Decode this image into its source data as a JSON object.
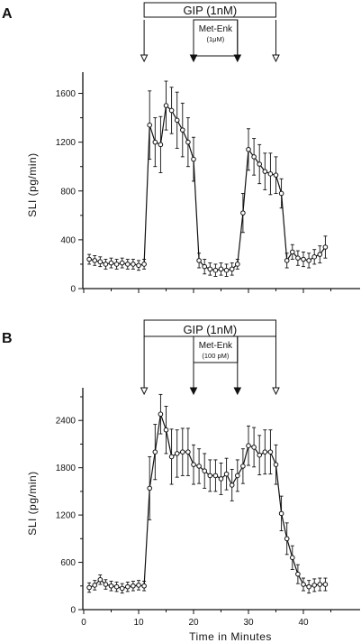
{
  "chart_data": [
    {
      "type": "line",
      "panel_label": "A",
      "xlabel": "",
      "ylabel": "SLI (pg/min)",
      "xlim": [
        0,
        45
      ],
      "ylim": [
        0,
        1700
      ],
      "yticks": [
        0,
        400,
        800,
        1200,
        1600
      ],
      "xticks": [
        0,
        10,
        20,
        30,
        40
      ],
      "xtick_labels_shown": false,
      "bars": {
        "outer_label": "GIP (1nM)",
        "outer_range": [
          11,
          35
        ],
        "inner_label": "Met-Enk",
        "inner_sublabel": "(1μM)",
        "inner_range": [
          20,
          28
        ]
      },
      "arrows": [
        {
          "x": 11,
          "style": "open"
        },
        {
          "x": 20,
          "style": "filled"
        },
        {
          "x": 28,
          "style": "filled"
        },
        {
          "x": 35,
          "style": "open"
        }
      ],
      "series": [
        {
          "x": [
            1,
            2,
            3,
            4,
            5,
            6,
            7,
            8,
            9,
            10,
            11,
            12,
            13,
            14,
            15,
            16,
            17,
            18,
            19,
            20,
            21,
            22,
            23,
            24,
            25,
            26,
            27,
            28,
            29,
            30,
            31,
            32,
            33,
            34,
            35,
            36,
            37,
            38,
            39,
            40,
            41,
            42,
            43,
            44
          ],
          "y": [
            240,
            230,
            220,
            200,
            210,
            200,
            210,
            200,
            200,
            190,
            200,
            1340,
            1200,
            1180,
            1500,
            1460,
            1380,
            1300,
            1200,
            1060,
            230,
            180,
            160,
            150,
            160,
            150,
            160,
            200,
            620,
            1140,
            1080,
            1020,
            960,
            940,
            930,
            780,
            230,
            300,
            250,
            240,
            230,
            260,
            280,
            340
          ],
          "err": [
            40,
            40,
            40,
            40,
            40,
            40,
            40,
            40,
            40,
            40,
            40,
            280,
            200,
            230,
            200,
            190,
            230,
            220,
            200,
            180,
            60,
            60,
            50,
            50,
            50,
            50,
            50,
            40,
            160,
            170,
            150,
            160,
            150,
            170,
            150,
            120,
            60,
            60,
            60,
            60,
            60,
            60,
            70,
            90
          ]
        }
      ]
    },
    {
      "type": "line",
      "panel_label": "B",
      "xlabel": "Time in Minutes",
      "ylabel": "SLI (pg/min)",
      "xlim": [
        0,
        45
      ],
      "ylim": [
        0,
        2700
      ],
      "yticks": [
        0,
        600,
        1200,
        1800,
        2400
      ],
      "xticks": [
        0,
        10,
        20,
        30,
        40
      ],
      "xtick_labels_shown": true,
      "bars": {
        "outer_label": "GIP (1nM)",
        "outer_range": [
          11,
          35
        ],
        "inner_label": "Met-Enk",
        "inner_sublabel": "(100 pM)",
        "inner_range": [
          20,
          28
        ]
      },
      "arrows": [
        {
          "x": 11,
          "style": "open"
        },
        {
          "x": 20,
          "style": "filled"
        },
        {
          "x": 28,
          "style": "filled"
        },
        {
          "x": 35,
          "style": "open"
        }
      ],
      "series": [
        {
          "x": [
            1,
            2,
            3,
            4,
            5,
            6,
            7,
            8,
            9,
            10,
            11,
            12,
            13,
            14,
            15,
            16,
            17,
            18,
            19,
            20,
            21,
            22,
            23,
            24,
            25,
            26,
            27,
            28,
            29,
            30,
            31,
            32,
            33,
            34,
            35,
            36,
            37,
            38,
            39,
            40,
            41,
            42,
            43,
            44
          ],
          "y": [
            280,
            310,
            380,
            320,
            300,
            290,
            270,
            290,
            300,
            310,
            300,
            1540,
            2000,
            2480,
            2280,
            1940,
            1980,
            2000,
            2000,
            1840,
            1820,
            1760,
            1700,
            1700,
            1660,
            1720,
            1580,
            1700,
            1820,
            2080,
            2060,
            1960,
            2000,
            2000,
            1840,
            1220,
            900,
            660,
            450,
            320,
            290,
            310,
            320,
            320
          ],
          "err": [
            60,
            60,
            60,
            60,
            60,
            60,
            60,
            60,
            60,
            60,
            60,
            400,
            350,
            250,
            300,
            350,
            300,
            300,
            300,
            250,
            220,
            220,
            200,
            200,
            200,
            200,
            200,
            200,
            220,
            250,
            250,
            250,
            280,
            280,
            250,
            220,
            200,
            150,
            120,
            80,
            80,
            80,
            80,
            80
          ]
        }
      ]
    }
  ]
}
